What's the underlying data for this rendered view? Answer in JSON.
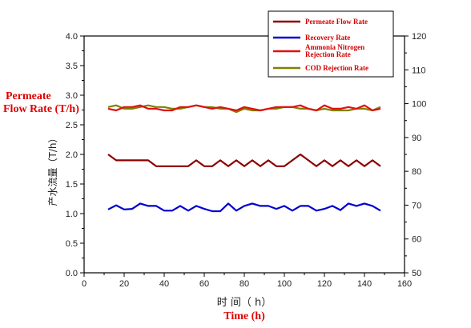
{
  "labels": {
    "y_left_en_line1": "Permeate",
    "y_left_en_line2": "Flow Rate (T/h)",
    "y_left_cn": "产水流量（T/h）",
    "x_cn": "时 间（ h）",
    "x_en": "Time (h)"
  },
  "colors": {
    "permeate": "#8b0000",
    "recovery": "#0000d0",
    "ammonia": "#e01010",
    "cod": "#808000",
    "axis": "#000000",
    "label_red": "#e00000"
  },
  "chart_data": {
    "type": "line",
    "xlim": [
      0,
      160
    ],
    "ylim_left": [
      0.0,
      4.0
    ],
    "ylim_right": [
      50,
      120
    ],
    "x_ticks": [
      0,
      20,
      40,
      60,
      80,
      100,
      120,
      140,
      160
    ],
    "y_left_ticks": [
      "0.0",
      "0.5",
      "1.0",
      "1.5",
      "2.0",
      "2.5",
      "3.0",
      "3.5",
      "4.0"
    ],
    "y_right_ticks": [
      "50",
      "60",
      "70",
      "80",
      "90",
      "100",
      "110",
      "120"
    ],
    "grid": false,
    "legend_position": "top-right",
    "x": [
      12,
      16,
      20,
      24,
      28,
      32,
      36,
      40,
      44,
      48,
      52,
      56,
      60,
      64,
      68,
      72,
      76,
      80,
      84,
      88,
      92,
      96,
      100,
      104,
      108,
      112,
      116,
      120,
      124,
      128,
      132,
      136,
      140,
      144,
      148
    ],
    "series": [
      {
        "name": "Permeate Flow Rate",
        "axis": "left",
        "values": [
          2.0,
          1.9,
          1.9,
          1.9,
          1.9,
          1.9,
          1.8,
          1.8,
          1.8,
          1.8,
          1.8,
          1.9,
          1.8,
          1.8,
          1.9,
          1.8,
          1.9,
          1.8,
          1.9,
          1.8,
          1.9,
          1.8,
          1.8,
          1.9,
          2.0,
          1.9,
          1.8,
          1.9,
          1.8,
          1.9,
          1.8,
          1.9,
          1.8,
          1.9,
          1.8
        ]
      },
      {
        "name": "Recovery Rate",
        "axis": "left",
        "values": [
          1.07,
          1.14,
          1.07,
          1.08,
          1.17,
          1.13,
          1.13,
          1.05,
          1.05,
          1.13,
          1.05,
          1.13,
          1.08,
          1.04,
          1.04,
          1.17,
          1.05,
          1.13,
          1.17,
          1.13,
          1.13,
          1.08,
          1.13,
          1.05,
          1.13,
          1.13,
          1.05,
          1.08,
          1.13,
          1.06,
          1.17,
          1.13,
          1.17,
          1.13,
          1.05
        ]
      },
      {
        "name": "Ammonia Nitrogen Rejection Rate",
        "axis": "right",
        "values": [
          98.5,
          98.0,
          99.0,
          99.0,
          99.5,
          98.5,
          98.5,
          98.0,
          98.0,
          99.0,
          99.0,
          99.5,
          99.0,
          98.5,
          99.0,
          98.5,
          98.0,
          99.0,
          98.5,
          98.0,
          98.5,
          99.0,
          99.0,
          99.0,
          99.5,
          98.5,
          98.0,
          99.5,
          98.5,
          98.5,
          99.0,
          98.5,
          99.5,
          98.0,
          98.5
        ]
      },
      {
        "name": "COD Rejection Rate",
        "axis": "right",
        "values": [
          99.0,
          99.5,
          98.5,
          98.5,
          99.0,
          99.5,
          99.0,
          99.0,
          98.5,
          98.5,
          99.0,
          99.5,
          99.0,
          99.0,
          98.5,
          98.5,
          97.5,
          98.5,
          98.0,
          98.0,
          98.5,
          98.5,
          99.0,
          99.0,
          98.5,
          98.5,
          98.0,
          98.5,
          98.0,
          98.0,
          98.0,
          98.5,
          98.5,
          98.0,
          99.0
        ]
      }
    ]
  }
}
